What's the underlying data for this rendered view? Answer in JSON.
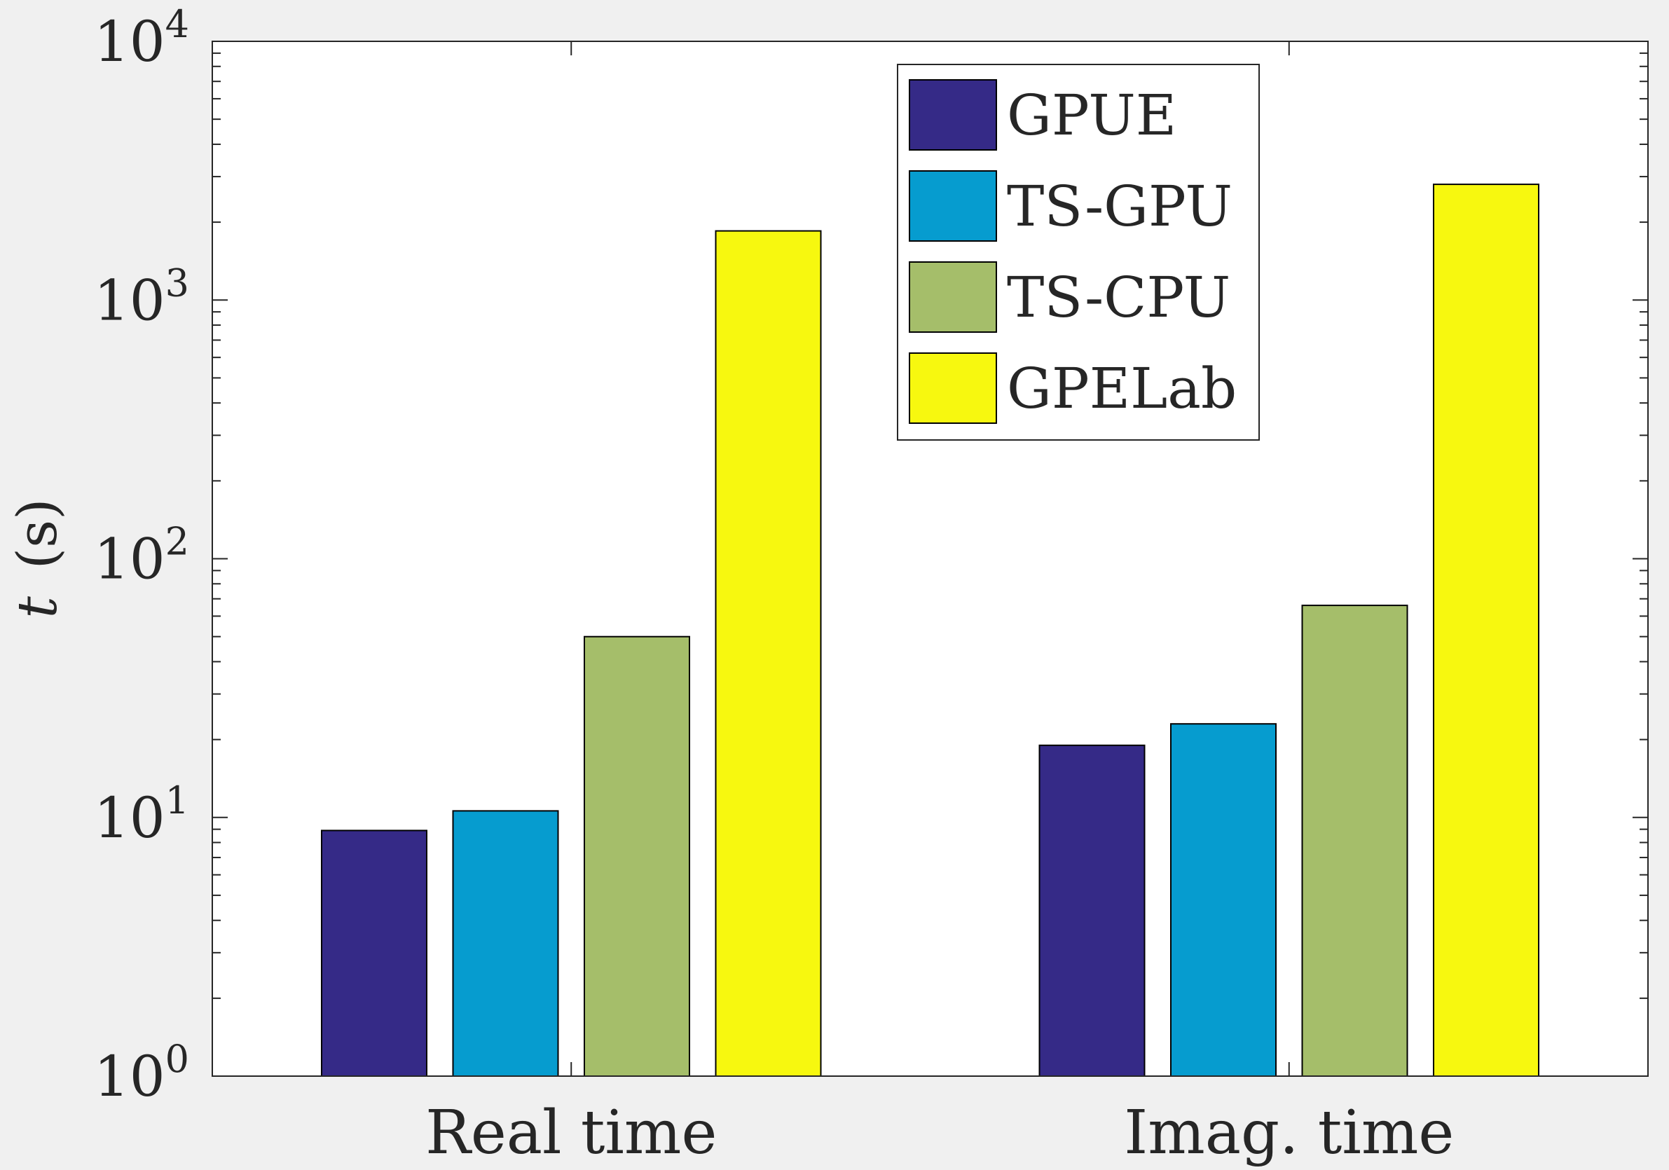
{
  "chart_data": {
    "type": "bar",
    "yscale": "log",
    "ylim": [
      1,
      10000
    ],
    "yticks": [
      {
        "value": 1,
        "base": "10",
        "exp": "0"
      },
      {
        "value": 10,
        "base": "10",
        "exp": "1"
      },
      {
        "value": 100,
        "base": "10",
        "exp": "2"
      },
      {
        "value": 1000,
        "base": "10",
        "exp": "3"
      },
      {
        "value": 10000,
        "base": "10",
        "exp": "4"
      }
    ],
    "ylabel": {
      "italic": "t",
      "unit": "(s)"
    },
    "xlabel": "",
    "title": "",
    "categories": [
      "Real time",
      "Imag. time"
    ],
    "series": [
      {
        "name": "GPUE",
        "color": "#352a87",
        "values": [
          8.9,
          19
        ]
      },
      {
        "name": "TS-GPU",
        "color": "#069ccf",
        "values": [
          10.6,
          23
        ]
      },
      {
        "name": "TS-CPU",
        "color": "#a5be6a",
        "values": [
          50,
          66
        ]
      },
      {
        "name": "GPELab",
        "color": "#f7f80f",
        "values": [
          1850,
          2800
        ]
      }
    ],
    "legend": {
      "position": "top-center"
    },
    "grid": false,
    "colors": {
      "axis": "#262626",
      "background": "#ffffff",
      "figure": "#f0f0f0",
      "bar_edge": "#000000"
    }
  }
}
